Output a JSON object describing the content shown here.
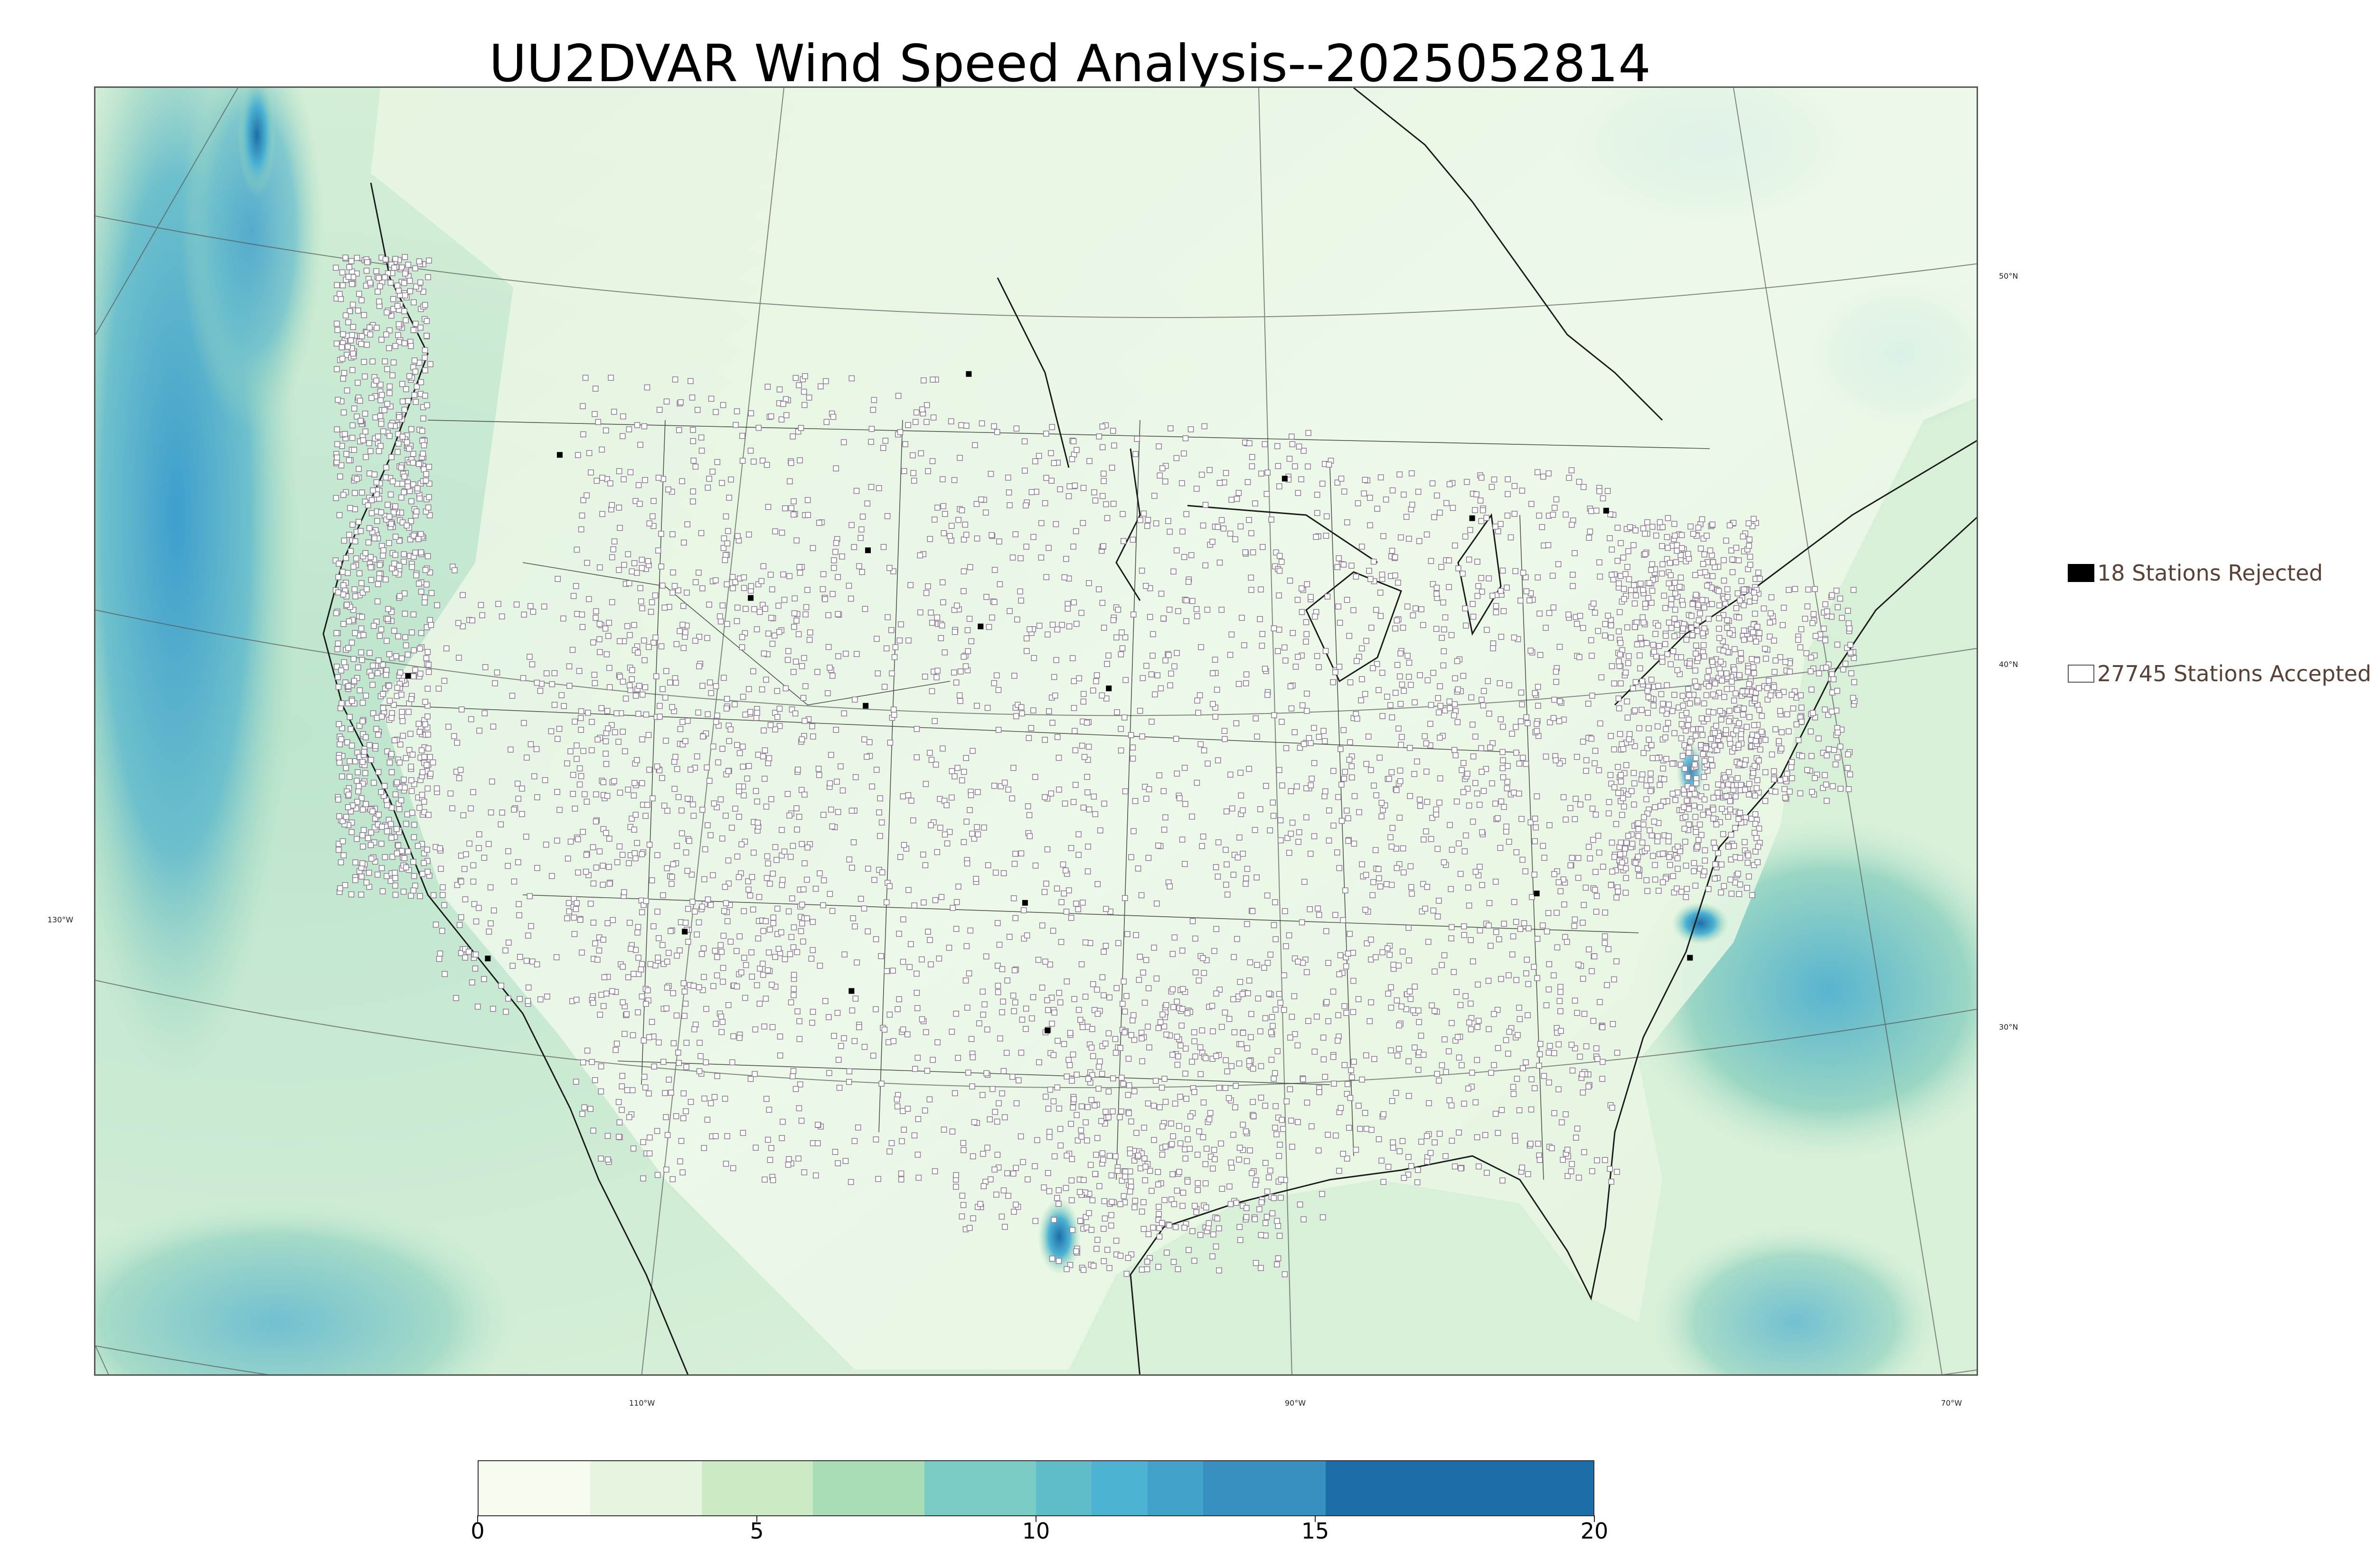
{
  "title": "UU2DVAR Wind Speed Analysis--2025052814",
  "map": {
    "meridian_labels": [
      "110°W",
      "90°W",
      "70°W"
    ],
    "parallel_labels": [
      "50°N",
      "40°N",
      "30°N"
    ],
    "left_labels": [
      "130°W"
    ],
    "station_marker_color": "#8a7a90",
    "rejected_marker_color": "#000000",
    "boundary_color": "#1a1a1a"
  },
  "legend": {
    "rejected": {
      "label": "18 Stations Rejected",
      "color": "#000000"
    },
    "accepted": {
      "label": "27745 Stations Accepted",
      "color": "#ffffff"
    }
  },
  "colorbar": {
    "ticks": [
      "0",
      "5",
      "10",
      "15",
      "20"
    ],
    "range": [
      0,
      20
    ],
    "colors": [
      "#f7fcf0",
      "#e5f5df",
      "#ccebc5",
      "#a8ddb5",
      "#7bccc4",
      "#5fbcc9",
      "#4eb3d3",
      "#43a2ca",
      "#3790c0",
      "#1d6ea8"
    ],
    "bounds": [
      0,
      2,
      4,
      6,
      8,
      10,
      11,
      12,
      13,
      15.2,
      20
    ]
  },
  "chart_data": {
    "type": "heatmap",
    "title": "UU2DVAR Wind Speed Analysis--2025052814",
    "colorbar_range": [
      0,
      20
    ],
    "colorbar_ticks": [
      0,
      5,
      10,
      15,
      20
    ],
    "stations_rejected": 18,
    "stations_accepted": 27745
  }
}
